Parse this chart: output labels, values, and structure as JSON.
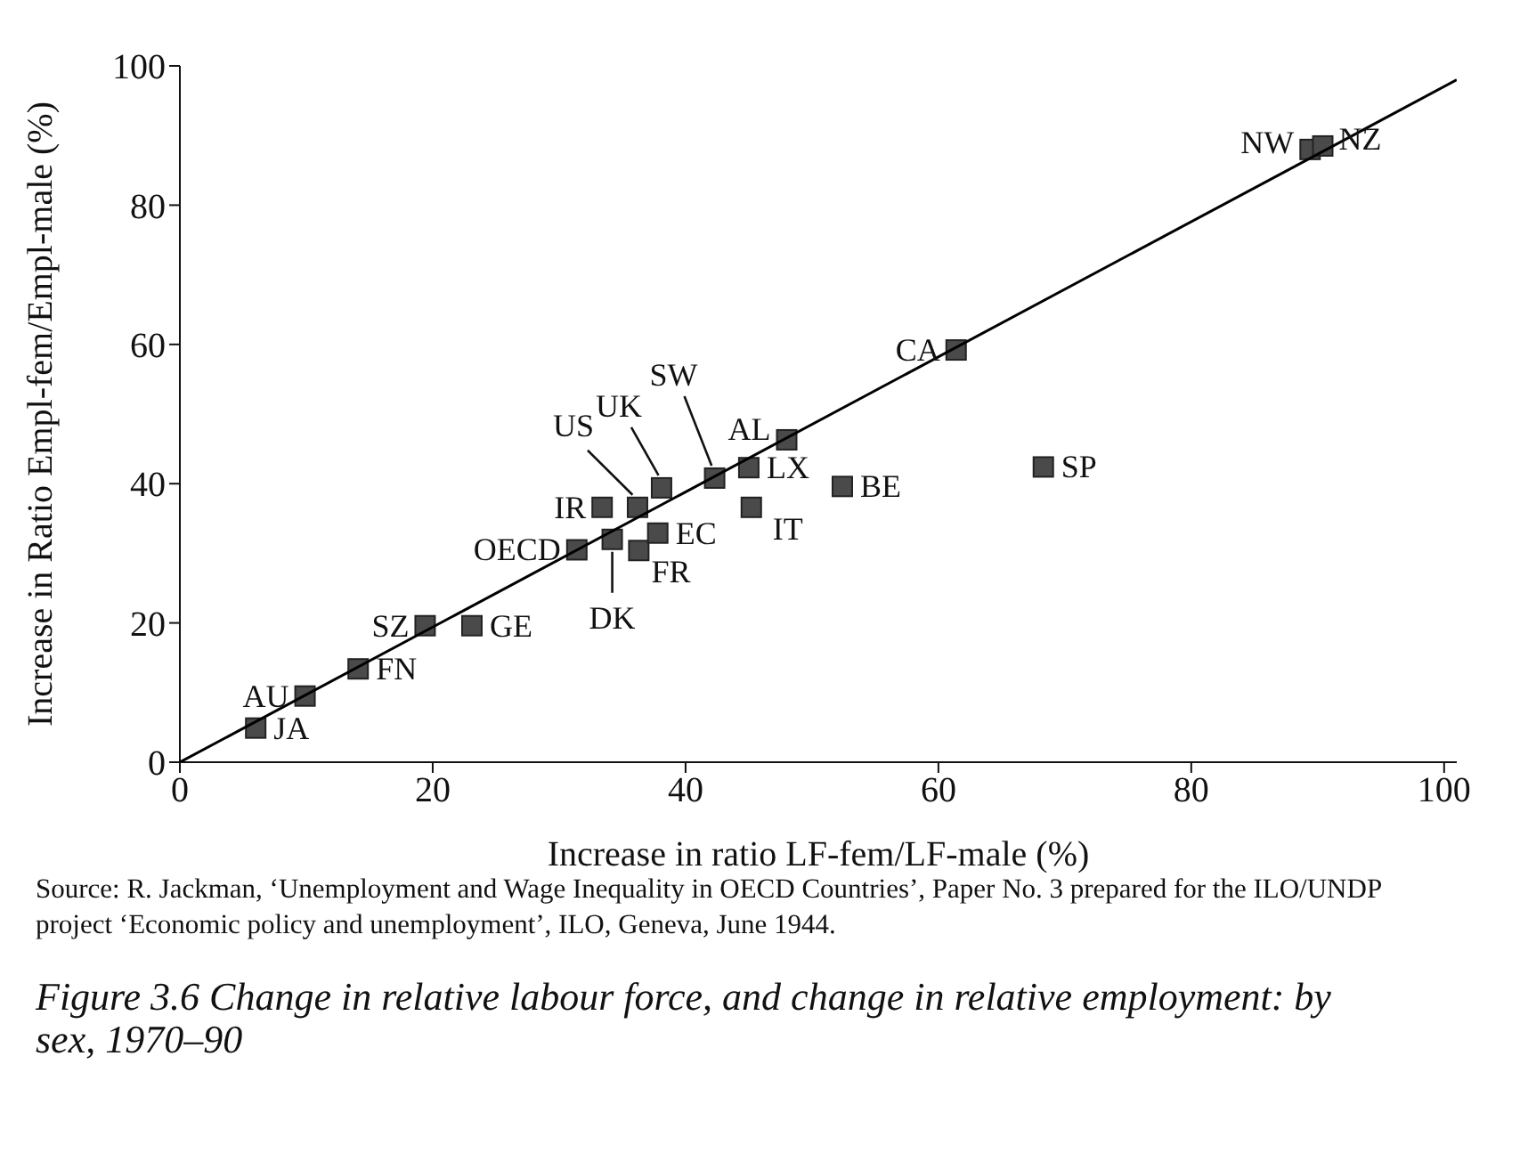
{
  "chart_data": {
    "type": "scatter",
    "title": "Figure 3.6    Change in relative labour force, and change in relative employment: by sex, 1970–90",
    "xlabel": "Increase in ratio LF-fem/LF-male (%)",
    "ylabel": "Increase in Ratio Empl-fem/Empl-male (%)",
    "xlim": [
      0,
      101
    ],
    "ylim": [
      0,
      100
    ],
    "xticks": [
      0,
      20,
      40,
      60,
      80,
      100
    ],
    "yticks": [
      0,
      20,
      40,
      60,
      80,
      100
    ],
    "marker": "square",
    "series": [
      {
        "color": "#4a4a4a",
        "x": [
          6,
          9.9,
          14.1,
          19.4,
          23.1,
          31.4,
          34.2,
          36.3,
          37.8,
          33.4,
          36.2,
          38.1,
          42.3,
          45,
          45.2,
          52.4,
          48,
          61.4,
          68.3,
          89.4,
          90.4
        ],
        "values": [
          4.9,
          9.5,
          13.4,
          19.6,
          19.6,
          30.5,
          32,
          30.4,
          32.9,
          36.6,
          36.6,
          39.4,
          40.8,
          42.3,
          36.6,
          39.6,
          46.3,
          59.2,
          42.4,
          88,
          88.5
        ]
      },
      {
        "type": "line",
        "color": "#000000",
        "marker": "none",
        "x": [
          0,
          101
        ],
        "values": [
          0,
          98
        ]
      }
    ],
    "annotations": [
      {
        "text": "JA",
        "x": 6,
        "y": 4.9
      },
      {
        "text": "AU",
        "x": 9.9,
        "y": 9.5
      },
      {
        "text": "FN",
        "x": 14.1,
        "y": 13.4
      },
      {
        "text": "SZ",
        "x": 19.4,
        "y": 19.6
      },
      {
        "text": "GE",
        "x": 23.1,
        "y": 19.6
      },
      {
        "text": "OECD",
        "x": 31.4,
        "y": 30.5
      },
      {
        "text": "DK",
        "x": 34.2,
        "y": 32
      },
      {
        "text": "FR",
        "x": 36.3,
        "y": 30.4
      },
      {
        "text": "EC",
        "x": 37.8,
        "y": 32.9
      },
      {
        "text": "IR",
        "x": 33.4,
        "y": 36.6
      },
      {
        "text": "US",
        "x": 36.2,
        "y": 36.6
      },
      {
        "text": "UK",
        "x": 38.1,
        "y": 39.4
      },
      {
        "text": "SW",
        "x": 42.3,
        "y": 40.8
      },
      {
        "text": "LX",
        "x": 45,
        "y": 42.3
      },
      {
        "text": "IT",
        "x": 45.2,
        "y": 36.6
      },
      {
        "text": "BE",
        "x": 52.4,
        "y": 39.6
      },
      {
        "text": "AL",
        "x": 48,
        "y": 46.3
      },
      {
        "text": "CA",
        "x": 61.4,
        "y": 59.2
      },
      {
        "text": "SP",
        "x": 68.3,
        "y": 42.4
      },
      {
        "text": "NW",
        "x": 89.4,
        "y": 88
      },
      {
        "text": "NZ",
        "x": 90.4,
        "y": 88.5
      },
      "Source:   R. Jackman, ‘Unemployment and Wage Inequality in OECD Countries’, Paper No. 3 prepared for the ILO/UNDP project ‘Economic policy and unemployment’, ILO, Geneva, June 1944."
    ]
  }
}
